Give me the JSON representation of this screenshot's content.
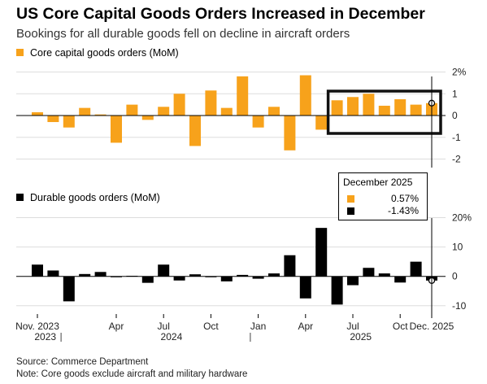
{
  "title": "US Core Capital Goods Orders Increased in December",
  "subtitle": "Bookings for all durable goods fell on decline in aircraft orders",
  "source": "Source: Commerce Department",
  "note": "Note: Core goods exclude aircraft and military hardware",
  "colors": {
    "core": "#f7a21b",
    "durable": "#000000",
    "grid": "#dddddd"
  },
  "tooltip": {
    "title": "December 2025",
    "rows": [
      {
        "series": "core",
        "value": "0.57%"
      },
      {
        "series": "durable",
        "value": "-1.43%"
      }
    ]
  },
  "x_axis": {
    "month_labels": [
      {
        "i": 0,
        "label": "Nov. 2023"
      },
      {
        "i": 5,
        "label": "Apr"
      },
      {
        "i": 8,
        "label": "Jul"
      },
      {
        "i": 11,
        "label": "Oct"
      },
      {
        "i": 14,
        "label": "Jan"
      },
      {
        "i": 17,
        "label": "Apr"
      },
      {
        "i": 20,
        "label": "Jul"
      },
      {
        "i": 23,
        "label": "Oct"
      },
      {
        "i": 25,
        "label": "Dec. 2025"
      }
    ],
    "year_labels": [
      {
        "i": 0.5,
        "label": "2023"
      },
      {
        "i": 8.5,
        "label": "2024"
      },
      {
        "i": 20.5,
        "label": "2025"
      }
    ],
    "year_dividers": [
      1.5,
      13.5
    ]
  },
  "chart_data": [
    {
      "type": "bar",
      "legend": "Core capital goods orders (MoM)",
      "color": "#f7a21b",
      "categories": [
        "Nov 2023",
        "Dec 2023",
        "Jan 2024",
        "Feb 2024",
        "Mar 2024",
        "Apr 2024",
        "May 2024",
        "Jun 2024",
        "Jul 2024",
        "Aug 2024",
        "Sep 2024",
        "Oct 2024",
        "Nov 2024",
        "Dec 2024",
        "Jan 2025",
        "Feb 2025",
        "Mar 2025",
        "Apr 2025",
        "May 2025",
        "Jun 2025",
        "Jul 2025",
        "Aug 2025",
        "Sep 2025",
        "Oct 2025",
        "Nov 2025",
        "Dec 2025"
      ],
      "values": [
        0.15,
        -0.3,
        -0.55,
        0.35,
        0.05,
        -1.25,
        0.5,
        -0.2,
        0.4,
        1.0,
        -1.4,
        1.15,
        0.35,
        1.8,
        -0.55,
        0.4,
        -1.6,
        1.85,
        -0.65,
        0.7,
        0.85,
        1.0,
        0.45,
        0.75,
        0.5,
        0.57
      ],
      "y_ticks": [
        2,
        1,
        0,
        -1,
        -2
      ],
      "y_tick_labels": [
        "2%",
        "1",
        "0",
        "-1",
        "-2"
      ],
      "ylim": [
        -2,
        2
      ],
      "grid": true,
      "highlight": {
        "from": "Jun 2025",
        "to": "Dec 2025"
      }
    },
    {
      "type": "bar",
      "legend": "Durable goods orders (MoM)",
      "color": "#000000",
      "categories": [
        "Nov 2023",
        "Dec 2023",
        "Jan 2024",
        "Feb 2024",
        "Mar 2024",
        "Apr 2024",
        "May 2024",
        "Jun 2024",
        "Jul 2024",
        "Aug 2024",
        "Sep 2024",
        "Oct 2024",
        "Nov 2024",
        "Dec 2024",
        "Jan 2025",
        "Feb 2025",
        "Mar 2025",
        "Apr 2025",
        "May 2025",
        "Jun 2025",
        "Jul 2025",
        "Aug 2025",
        "Sep 2025",
        "Oct 2025",
        "Nov 2025",
        "Dec 2025"
      ],
      "values": [
        4.0,
        2.0,
        -8.5,
        0.8,
        1.5,
        -0.3,
        0.2,
        -2.2,
        4.0,
        -1.4,
        0.7,
        -0.3,
        -1.7,
        0.5,
        -0.8,
        1.0,
        7.2,
        -7.5,
        16.5,
        -9.6,
        -3.0,
        2.9,
        1.0,
        -2.1,
        5.0,
        -1.43
      ],
      "y_ticks": [
        20,
        10,
        0,
        -10
      ],
      "y_tick_labels": [
        "20%",
        "10",
        "0",
        "-10"
      ],
      "ylim": [
        -10,
        20
      ],
      "grid": true
    }
  ]
}
